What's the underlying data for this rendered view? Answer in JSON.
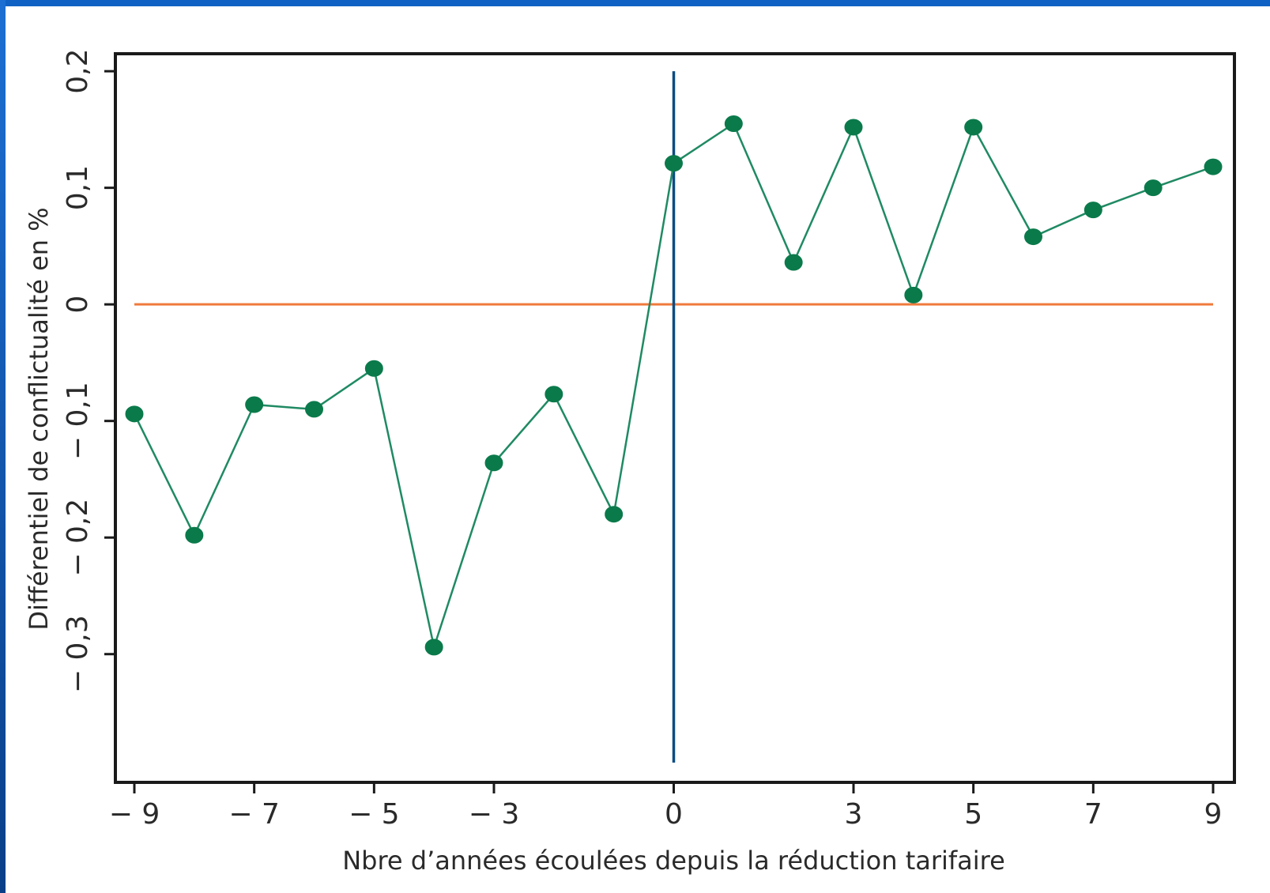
{
  "colors": {
    "slide_background": "#0f62c4",
    "series_line": "#1f8a63",
    "series_marker": "#0b7a4b",
    "zero_line": "#f07a3c",
    "vertical_line": "#0b4c82",
    "axes": "#1a1a1a"
  },
  "chart_data": {
    "type": "line",
    "title": "",
    "xlabel": "Nbre d’années écoulées depuis la réduction tarifaire",
    "ylabel": "Différentiel de conflictualité en %",
    "xlim": [
      -9,
      9
    ],
    "ylim": [
      -0.41,
      0.215
    ],
    "x_ticks": [
      {
        "value": -9,
        "label": "− 9"
      },
      {
        "value": -7,
        "label": "− 7"
      },
      {
        "value": -5,
        "label": "− 5"
      },
      {
        "value": -3,
        "label": "− 3"
      },
      {
        "value": 0,
        "label": "0"
      },
      {
        "value": 3,
        "label": "3"
      },
      {
        "value": 5,
        "label": "5"
      },
      {
        "value": 7,
        "label": "7"
      },
      {
        "value": 9,
        "label": "9"
      }
    ],
    "y_ticks": [
      {
        "value": 0.2,
        "label": "0,2"
      },
      {
        "value": 0.1,
        "label": "0,1"
      },
      {
        "value": 0,
        "label": "0"
      },
      {
        "value": -0.1,
        "label": "− 0,1"
      },
      {
        "value": -0.2,
        "label": "− 0,2"
      },
      {
        "value": -0.3,
        "label": "− 0,3"
      }
    ],
    "reference_lines": {
      "horizontal_y": 0,
      "vertical_x": 0
    },
    "grid": false,
    "series": [
      {
        "x": [
          -9,
          -8,
          -7,
          -6,
          -5,
          -4,
          -3,
          -2,
          -1,
          0,
          1,
          2,
          3,
          4,
          5,
          6,
          7,
          8,
          9
        ],
        "y": [
          -0.094,
          -0.198,
          -0.086,
          -0.09,
          -0.055,
          -0.294,
          -0.136,
          -0.077,
          -0.18,
          0.121,
          0.155,
          0.036,
          0.152,
          0.008,
          0.152,
          0.058,
          0.081,
          0.1,
          0.118
        ]
      }
    ]
  }
}
